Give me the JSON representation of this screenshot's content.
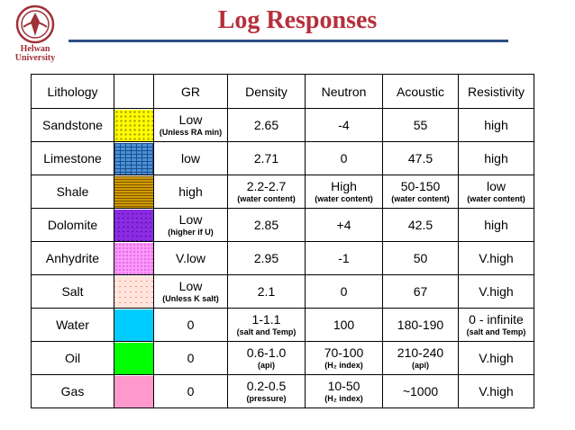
{
  "header": {
    "title": "Log Responses",
    "logo_text_line1": "Helwan",
    "logo_text_line2": "University",
    "colors": {
      "title": "#b5303c",
      "rule": "#2f4f85",
      "logo": "#a0303a"
    }
  },
  "table": {
    "columns": [
      "Lithology",
      "",
      "GR",
      "Density",
      "Neutron",
      "Acoustic",
      "Resistivity"
    ],
    "rows": [
      {
        "lithology": "Sandstone",
        "swatch": "#ffff00",
        "gr": "Low",
        "gr_note": "(Unless RA min)",
        "density": "2.65",
        "density_note": "",
        "neutron": "-4",
        "neutron_note": "",
        "acoustic": "55",
        "acoustic_note": "",
        "resistivity": "high",
        "resistivity_note": ""
      },
      {
        "lithology": "Limestone",
        "swatch": "#4a90d8",
        "gr": "low",
        "gr_note": "",
        "density": "2.71",
        "density_note": "",
        "neutron": "0",
        "neutron_note": "",
        "acoustic": "47.5",
        "acoustic_note": "",
        "resistivity": "high",
        "resistivity_note": ""
      },
      {
        "lithology": "Shale",
        "swatch": "#d19a00",
        "gr": "high",
        "gr_note": "",
        "density": "2.2-2.7",
        "density_note": "(water content)",
        "neutron": "High",
        "neutron_note": "(water content)",
        "acoustic": "50-150",
        "acoustic_note": "(water content)",
        "resistivity": "low",
        "resistivity_note": "(water content)"
      },
      {
        "lithology": "Dolomite",
        "swatch": "#8a2be2",
        "gr": "Low",
        "gr_note": "(higher if U)",
        "density": "2.85",
        "density_note": "",
        "neutron": "+4",
        "neutron_note": "",
        "acoustic": "42.5",
        "acoustic_note": "",
        "resistivity": "high",
        "resistivity_note": ""
      },
      {
        "lithology": "Anhydrite",
        "swatch": "#ff99ff",
        "gr": "V.low",
        "gr_note": "",
        "density": "2.95",
        "density_note": "",
        "neutron": "-1",
        "neutron_note": "",
        "acoustic": "50",
        "acoustic_note": "",
        "resistivity": "V.high",
        "resistivity_note": ""
      },
      {
        "lithology": "Salt",
        "swatch": "#ffe4dc",
        "gr": "Low",
        "gr_note": "(Unless K salt)",
        "density": "2.1",
        "density_note": "",
        "neutron": "0",
        "neutron_note": "",
        "acoustic": "67",
        "acoustic_note": "",
        "resistivity": "V.high",
        "resistivity_note": ""
      },
      {
        "lithology": "Water",
        "swatch": "#00ccff",
        "gr": "0",
        "gr_note": "",
        "density": "1-1.1",
        "density_note": "(salt and Temp)",
        "neutron": "100",
        "neutron_note": "",
        "acoustic": "180-190",
        "acoustic_note": "",
        "resistivity": "0 - infinite",
        "resistivity_note": "(salt and Temp)"
      },
      {
        "lithology": "Oil",
        "swatch": "#00ff00",
        "gr": "0",
        "gr_note": "",
        "density": "0.6-1.0",
        "density_note": "(api)",
        "neutron": "70-100",
        "neutron_note": "(H₂ index)",
        "acoustic": "210-240",
        "acoustic_note": "(api)",
        "resistivity": "V.high",
        "resistivity_note": ""
      },
      {
        "lithology": "Gas",
        "swatch": "#ff99cc",
        "gr": "0",
        "gr_note": "",
        "density": "0.2-0.5",
        "density_note": "(pressure)",
        "neutron": "10-50",
        "neutron_note": "(H₂ index)",
        "acoustic": "~1000",
        "acoustic_note": "",
        "resistivity": "V.high",
        "resistivity_note": ""
      }
    ]
  }
}
